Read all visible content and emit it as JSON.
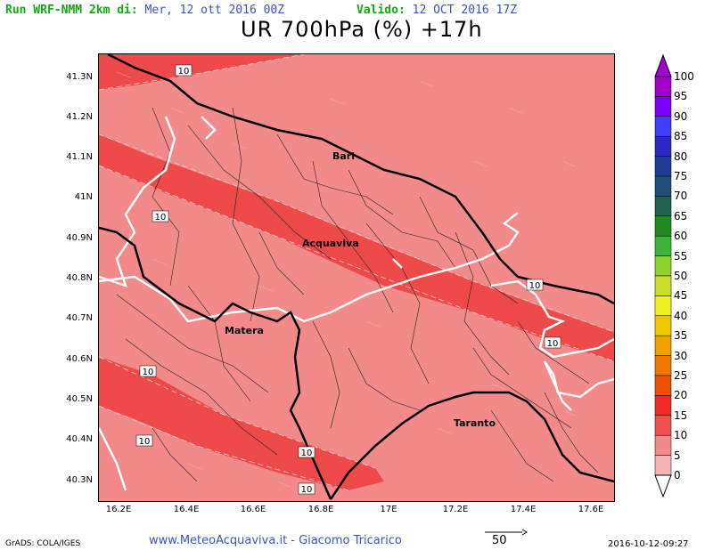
{
  "header": {
    "run_label": "Run WRF-NMM 2km di:",
    "run_date": "Mer, 12 ott 2016 00Z",
    "valid_label": "Valido:",
    "valid_date": "12 OCT 2016 17Z",
    "title": "UR 700hPa (%) +17h"
  },
  "map": {
    "x_ticks": [
      "16.2E",
      "16.4E",
      "16.6E",
      "16.8E",
      "17E",
      "17.2E",
      "17.4E",
      "17.6E"
    ],
    "y_ticks": [
      "41.3N",
      "41.2N",
      "41.1N",
      "41N",
      "40.9N",
      "40.8N",
      "40.7N",
      "40.6N",
      "40.5N",
      "40.4N",
      "40.3N"
    ],
    "cities": [
      "Bari",
      "Acquaviva",
      "Matera",
      "Taranto"
    ],
    "contour_label": "10",
    "colors": {
      "band_5_10": "#f28a8a",
      "band_10_15": "#ee4a4a",
      "coast": "#000000",
      "border": "#ffffff"
    }
  },
  "colorbar": {
    "levels": [
      "100",
      "95",
      "90",
      "85",
      "80",
      "75",
      "70",
      "65",
      "60",
      "55",
      "50",
      "45",
      "40",
      "35",
      "30",
      "25",
      "20",
      "15",
      "10",
      "5",
      "0"
    ],
    "colors": [
      "#a000c8",
      "#7d00fa",
      "#4040ff",
      "#2828c8",
      "#1e3c96",
      "#1e5078",
      "#1e6450",
      "#1e8c1e",
      "#3cb43c",
      "#8cd22d",
      "#c8dc28",
      "#f0f01e",
      "#f0c800",
      "#f0a000",
      "#f07800",
      "#f05000",
      "#f02828",
      "#f05050",
      "#f28a8a",
      "#f5b4b4"
    ]
  },
  "footer": {
    "grads": "GrADS: COLA/IGES",
    "credit": "www.MeteoAcquaviva.it  -  Giacomo Tricarico",
    "vector_ref": "50",
    "datetime": "2016-10-12-09:27"
  }
}
